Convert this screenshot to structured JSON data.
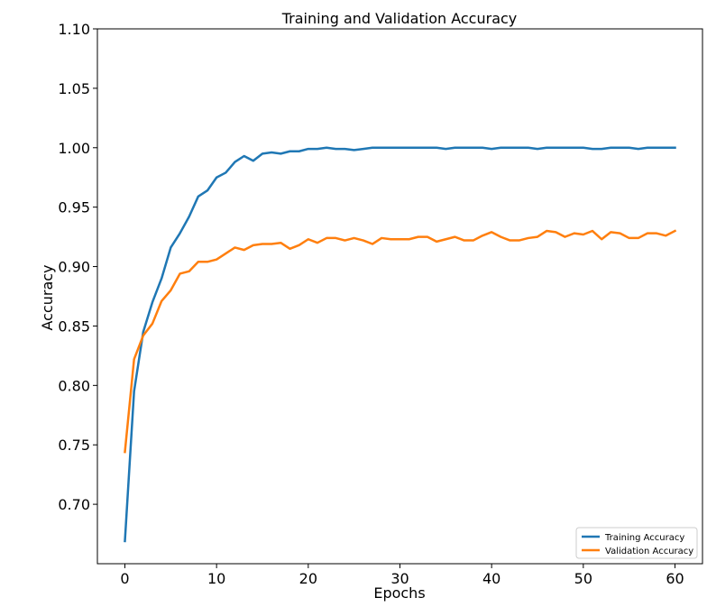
{
  "chart_data": {
    "type": "line",
    "title": "Training and Validation Accuracy",
    "xlabel": "Epochs",
    "ylabel": "Accuracy",
    "xlim": [
      -3,
      63
    ],
    "ylim": [
      0.65,
      1.1
    ],
    "xticks": [
      0,
      10,
      20,
      30,
      40,
      50,
      60
    ],
    "yticks": [
      0.7,
      0.75,
      0.8,
      0.85,
      0.9,
      0.95,
      1.0,
      1.05,
      1.1
    ],
    "grid": false,
    "legend_position": "bottom-right",
    "x": [
      0,
      1,
      2,
      3,
      4,
      5,
      6,
      7,
      8,
      9,
      10,
      11,
      12,
      13,
      14,
      15,
      16,
      17,
      18,
      19,
      20,
      21,
      22,
      23,
      24,
      25,
      26,
      27,
      28,
      29,
      30,
      31,
      32,
      33,
      34,
      35,
      36,
      37,
      38,
      39,
      40,
      41,
      42,
      43,
      44,
      45,
      46,
      47,
      48,
      49,
      50,
      51,
      52,
      53,
      54,
      55,
      56,
      57,
      58,
      59,
      60
    ],
    "series": [
      {
        "name": "Training Accuracy",
        "color": "#1f77b4",
        "values": [
          0.669,
          0.795,
          0.845,
          0.87,
          0.89,
          0.916,
          0.928,
          0.942,
          0.959,
          0.964,
          0.975,
          0.979,
          0.988,
          0.993,
          0.989,
          0.995,
          0.996,
          0.995,
          0.997,
          0.997,
          0.999,
          0.999,
          1.0,
          0.999,
          0.999,
          0.998,
          0.999,
          1.0,
          1.0,
          1.0,
          1.0,
          1.0,
          1.0,
          1.0,
          1.0,
          0.999,
          1.0,
          1.0,
          1.0,
          1.0,
          0.999,
          1.0,
          1.0,
          1.0,
          1.0,
          0.999,
          1.0,
          1.0,
          1.0,
          1.0,
          1.0,
          0.999,
          0.999,
          1.0,
          1.0,
          1.0,
          0.999,
          1.0,
          1.0,
          1.0,
          1.0
        ]
      },
      {
        "name": "Validation Accuracy",
        "color": "#ff7f0e",
        "values": [
          0.744,
          0.822,
          0.842,
          0.852,
          0.871,
          0.88,
          0.894,
          0.896,
          0.904,
          0.904,
          0.906,
          0.911,
          0.916,
          0.914,
          0.918,
          0.919,
          0.919,
          0.92,
          0.915,
          0.918,
          0.923,
          0.92,
          0.924,
          0.924,
          0.922,
          0.924,
          0.922,
          0.919,
          0.924,
          0.923,
          0.923,
          0.923,
          0.925,
          0.925,
          0.921,
          0.923,
          0.925,
          0.922,
          0.922,
          0.926,
          0.929,
          0.925,
          0.922,
          0.922,
          0.924,
          0.925,
          0.93,
          0.929,
          0.925,
          0.928,
          0.927,
          0.93,
          0.923,
          0.929,
          0.928,
          0.924,
          0.924,
          0.928,
          0.928,
          0.926,
          0.93
        ]
      }
    ]
  }
}
